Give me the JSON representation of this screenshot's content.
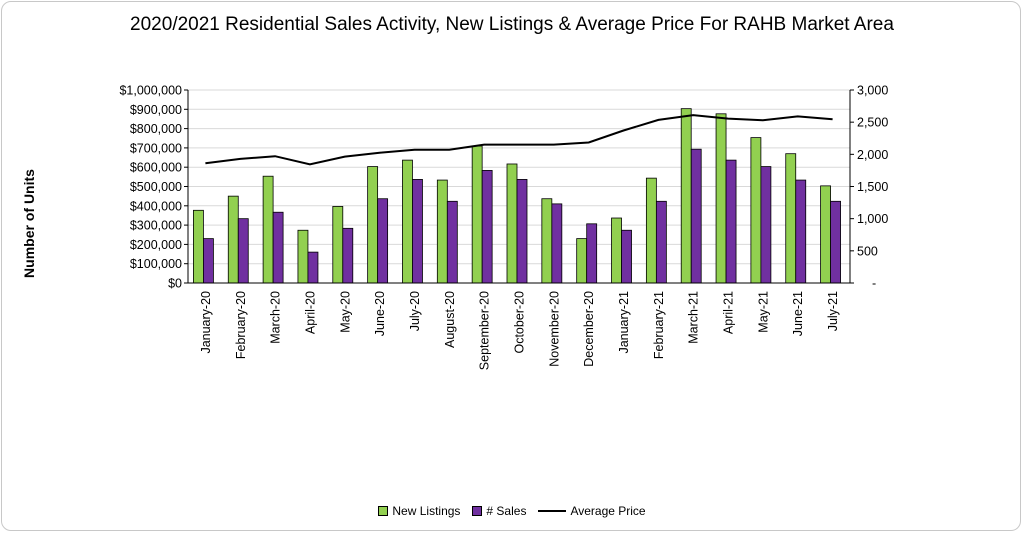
{
  "chart_data": {
    "type": "bar",
    "title": "2020/2021 Residential Sales Activity, New Listings & Average Price For RAHB Market Area",
    "ylabel": "Number of Units",
    "categories": [
      "January-20",
      "February-20",
      "March-20",
      "April-20",
      "May-20",
      "June-20",
      "July-20",
      "August-20",
      "September-20",
      "October-20",
      "November-20",
      "December-20",
      "January-21",
      "February-21",
      "March-21",
      "April-21",
      "May-21",
      "June-21",
      "July-21"
    ],
    "series": [
      {
        "name": "New Listings",
        "kind": "bar",
        "axis": "right",
        "color": "#92d050",
        "values": [
          1130,
          1350,
          1660,
          820,
          1190,
          1810,
          1910,
          1600,
          2130,
          1850,
          1310,
          690,
          1010,
          1630,
          2710,
          2630,
          2260,
          2010,
          1510
        ]
      },
      {
        "name": "# Sales",
        "kind": "bar",
        "axis": "right",
        "color": "#7030a0",
        "values": [
          690,
          1000,
          1100,
          480,
          850,
          1310,
          1610,
          1270,
          1750,
          1610,
          1230,
          920,
          820,
          1270,
          2080,
          1910,
          1810,
          1600,
          1270
        ]
      },
      {
        "name": "Average Price",
        "kind": "line",
        "axis": "left",
        "color": "#000000",
        "values": [
          620000,
          643000,
          657000,
          615000,
          655000,
          675000,
          690000,
          690000,
          717000,
          717000,
          717000,
          728000,
          790000,
          845000,
          870000,
          852000,
          843000,
          863000,
          848000
        ]
      }
    ],
    "left_axis": {
      "ticks": [
        "$0",
        "$100,000",
        "$200,000",
        "$300,000",
        "$400,000",
        "$500,000",
        "$600,000",
        "$700,000",
        "$800,000",
        "$900,000",
        "$1,000,000"
      ],
      "range": [
        0,
        1000000
      ]
    },
    "right_axis": {
      "ticks": [
        "-",
        "500",
        "1,000",
        "1,500",
        "2,000",
        "2,500",
        "3,000"
      ],
      "range": [
        0,
        3000
      ]
    },
    "grid": true,
    "legend_position": "bottom"
  }
}
